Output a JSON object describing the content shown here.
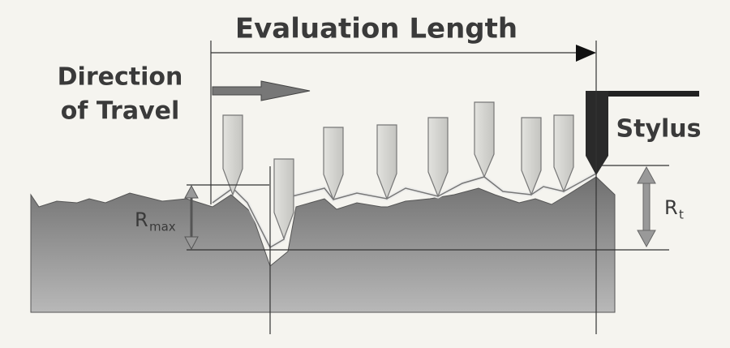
{
  "labels": {
    "title": "Evaluation Length",
    "direction": [
      "Direction",
      "of Travel"
    ],
    "stylus": "Stylus",
    "rmax": {
      "symbol": "R",
      "subscript": "max"
    },
    "rt": {
      "symbol": "R",
      "subscript": "t"
    }
  }
}
